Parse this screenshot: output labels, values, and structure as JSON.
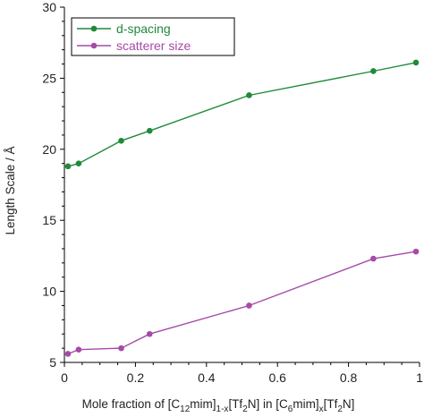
{
  "chart_data": {
    "type": "line",
    "title": "",
    "ylabel": "Length Scale / Å",
    "xlabel": {
      "prefix": "Mole fraction of [C",
      "sub1": "12",
      "mid1": "mim]",
      "sub2": "1-x",
      "mid2": "[Tf",
      "sub3": "2",
      "mid3": "N] in [C",
      "sub4": "6",
      "mid4": "mim]",
      "sub5": "x",
      "mid5": "[Tf",
      "sub6": "2",
      "suffix": "N]"
    },
    "xlim": [
      0,
      1
    ],
    "ylim": [
      5,
      30
    ],
    "x_ticks": [
      "0",
      "0.2",
      "0.4",
      "0.6",
      "0.8",
      "1"
    ],
    "y_ticks": [
      "5",
      "10",
      "15",
      "20",
      "25",
      "30"
    ],
    "grid": false,
    "legend_position": "top-left",
    "series": [
      {
        "name": "d-spacing",
        "color": "#1f8a3a",
        "x": [
          0.01,
          0.04,
          0.16,
          0.24,
          0.52,
          0.87,
          0.99
        ],
        "y": [
          18.8,
          19.0,
          20.6,
          21.3,
          23.8,
          25.5,
          26.1
        ]
      },
      {
        "name": "scatterer size",
        "color": "#a64aa8",
        "x": [
          0.01,
          0.04,
          0.16,
          0.24,
          0.52,
          0.87,
          0.99
        ],
        "y": [
          5.6,
          5.9,
          6.0,
          7.0,
          9.0,
          12.3,
          12.8
        ]
      }
    ]
  }
}
